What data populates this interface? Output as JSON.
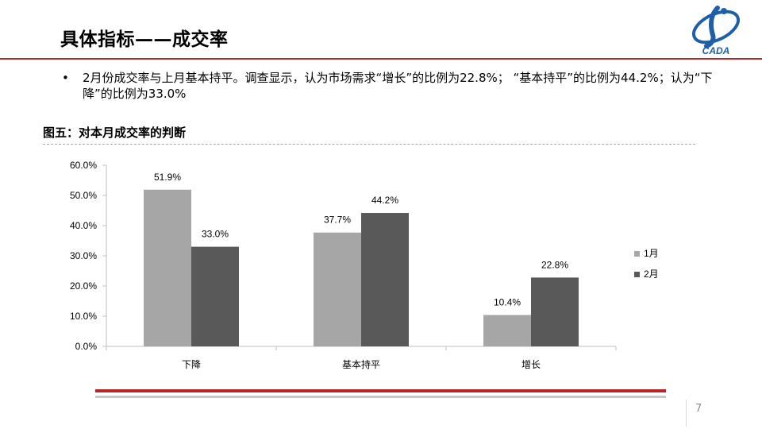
{
  "slide": {
    "title": "具体指标——成交率",
    "logo_text": "CADA",
    "bullet": "2月份成交率与上月基本持平。调查显示，认为市场需求“增长”的比例为22.8%； “基本持平”的比例为44.2%；认为“下降”的比例为33.0%",
    "bullet_marker": "•",
    "chart_heading": "图五：对本月成交率的判断",
    "page_number": "7",
    "accent_color": "#b5262b"
  },
  "chart_data": {
    "type": "bar",
    "categories": [
      "下降",
      "基本持平",
      "增长"
    ],
    "series": [
      {
        "name": "1月",
        "values": [
          51.9,
          37.7,
          10.4
        ],
        "labels": [
          "51.9%",
          "37.7%",
          "10.4%"
        ],
        "color": "#a6a6a6"
      },
      {
        "name": "2月",
        "values": [
          33.0,
          44.2,
          22.8
        ],
        "labels": [
          "33.0%",
          "44.2%",
          "22.8%"
        ],
        "color": "#595959"
      }
    ],
    "ylim": [
      0,
      60
    ],
    "yticks": [
      0,
      10,
      20,
      30,
      40,
      50,
      60
    ],
    "ytick_labels": [
      "0.0%",
      "10.0%",
      "20.0%",
      "30.0%",
      "40.0%",
      "50.0%",
      "60.0%"
    ],
    "legend_position": "right",
    "grid": false
  }
}
